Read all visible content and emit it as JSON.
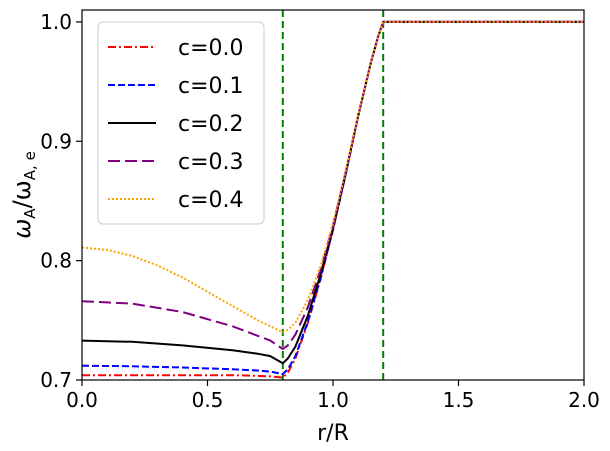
{
  "chart_data": {
    "type": "line",
    "xlabel": "r/R",
    "ylabel_main": "ω",
    "ylabel_sub1": "A",
    "ylabel_sep": "/ω",
    "ylabel_sub2": "A, e",
    "xlim": [
      0.0,
      2.0
    ],
    "ylim": [
      0.7,
      1.01
    ],
    "xticks": [
      0.0,
      0.5,
      1.0,
      1.5,
      2.0
    ],
    "xtick_labels": [
      "0.0",
      "0.5",
      "1.0",
      "1.5",
      "2.0"
    ],
    "yticks": [
      0.7,
      0.8,
      0.9,
      1.0
    ],
    "ytick_labels": [
      "0.7",
      "0.8",
      "0.9",
      "1.0"
    ],
    "vlines": [
      0.8,
      1.2
    ],
    "vline_color": "#008000",
    "grid": false,
    "legend_position": "top-left",
    "series": [
      {
        "name": "c=0.0",
        "color": "#ff0000",
        "dash": "dashdot",
        "x": [
          0.0,
          0.2,
          0.4,
          0.6,
          0.7,
          0.75,
          0.8,
          0.82,
          0.85,
          0.9,
          0.95,
          1.0,
          1.05,
          1.1,
          1.15,
          1.18,
          1.2,
          1.4,
          1.6,
          1.8,
          2.0
        ],
        "y": [
          0.704,
          0.704,
          0.704,
          0.704,
          0.7035,
          0.703,
          0.702,
          0.706,
          0.718,
          0.748,
          0.784,
          0.826,
          0.872,
          0.921,
          0.965,
          0.988,
          1.0,
          1.0,
          1.0,
          1.0,
          1.0
        ]
      },
      {
        "name": "c=0.1",
        "color": "#0000ff",
        "dash": "dashed",
        "x": [
          0.0,
          0.2,
          0.4,
          0.6,
          0.7,
          0.75,
          0.8,
          0.82,
          0.85,
          0.9,
          0.95,
          1.0,
          1.05,
          1.1,
          1.15,
          1.18,
          1.2,
          1.4,
          1.6,
          1.8,
          2.0
        ],
        "y": [
          0.712,
          0.7115,
          0.7105,
          0.709,
          0.708,
          0.707,
          0.705,
          0.709,
          0.72,
          0.749,
          0.785,
          0.826,
          0.872,
          0.921,
          0.965,
          0.988,
          1.0,
          1.0,
          1.0,
          1.0,
          1.0
        ]
      },
      {
        "name": "c=0.2",
        "color": "#000000",
        "dash": "solid",
        "x": [
          0.0,
          0.2,
          0.4,
          0.6,
          0.7,
          0.75,
          0.8,
          0.82,
          0.85,
          0.9,
          0.95,
          1.0,
          1.05,
          1.1,
          1.15,
          1.18,
          1.2,
          1.4,
          1.6,
          1.8,
          2.0
        ],
        "y": [
          0.733,
          0.732,
          0.729,
          0.725,
          0.722,
          0.72,
          0.714,
          0.718,
          0.728,
          0.754,
          0.788,
          0.827,
          0.873,
          0.921,
          0.965,
          0.988,
          1.0,
          1.0,
          1.0,
          1.0,
          1.0
        ]
      },
      {
        "name": "c=0.3",
        "color": "#800080",
        "dash": "longdash",
        "x": [
          0.0,
          0.2,
          0.4,
          0.6,
          0.7,
          0.75,
          0.8,
          0.82,
          0.85,
          0.9,
          0.95,
          1.0,
          1.05,
          1.1,
          1.15,
          1.18,
          1.2,
          1.4,
          1.6,
          1.8,
          2.0
        ],
        "y": [
          0.766,
          0.764,
          0.757,
          0.745,
          0.737,
          0.733,
          0.726,
          0.729,
          0.738,
          0.761,
          0.792,
          0.829,
          0.874,
          0.921,
          0.965,
          0.988,
          1.0,
          1.0,
          1.0,
          1.0,
          1.0
        ]
      },
      {
        "name": "c=0.4",
        "color": "#ffa500",
        "dash": "dotted",
        "x": [
          0.0,
          0.1,
          0.2,
          0.3,
          0.4,
          0.5,
          0.6,
          0.7,
          0.75,
          0.8,
          0.82,
          0.85,
          0.9,
          0.95,
          1.0,
          1.05,
          1.1,
          1.15,
          1.18,
          1.2,
          1.4,
          1.6,
          1.8,
          2.0
        ],
        "y": [
          0.811,
          0.809,
          0.804,
          0.796,
          0.786,
          0.774,
          0.762,
          0.75,
          0.745,
          0.74,
          0.742,
          0.748,
          0.767,
          0.795,
          0.831,
          0.875,
          0.922,
          0.965,
          0.988,
          1.0,
          1.0,
          1.0,
          1.0,
          1.0
        ]
      }
    ]
  }
}
